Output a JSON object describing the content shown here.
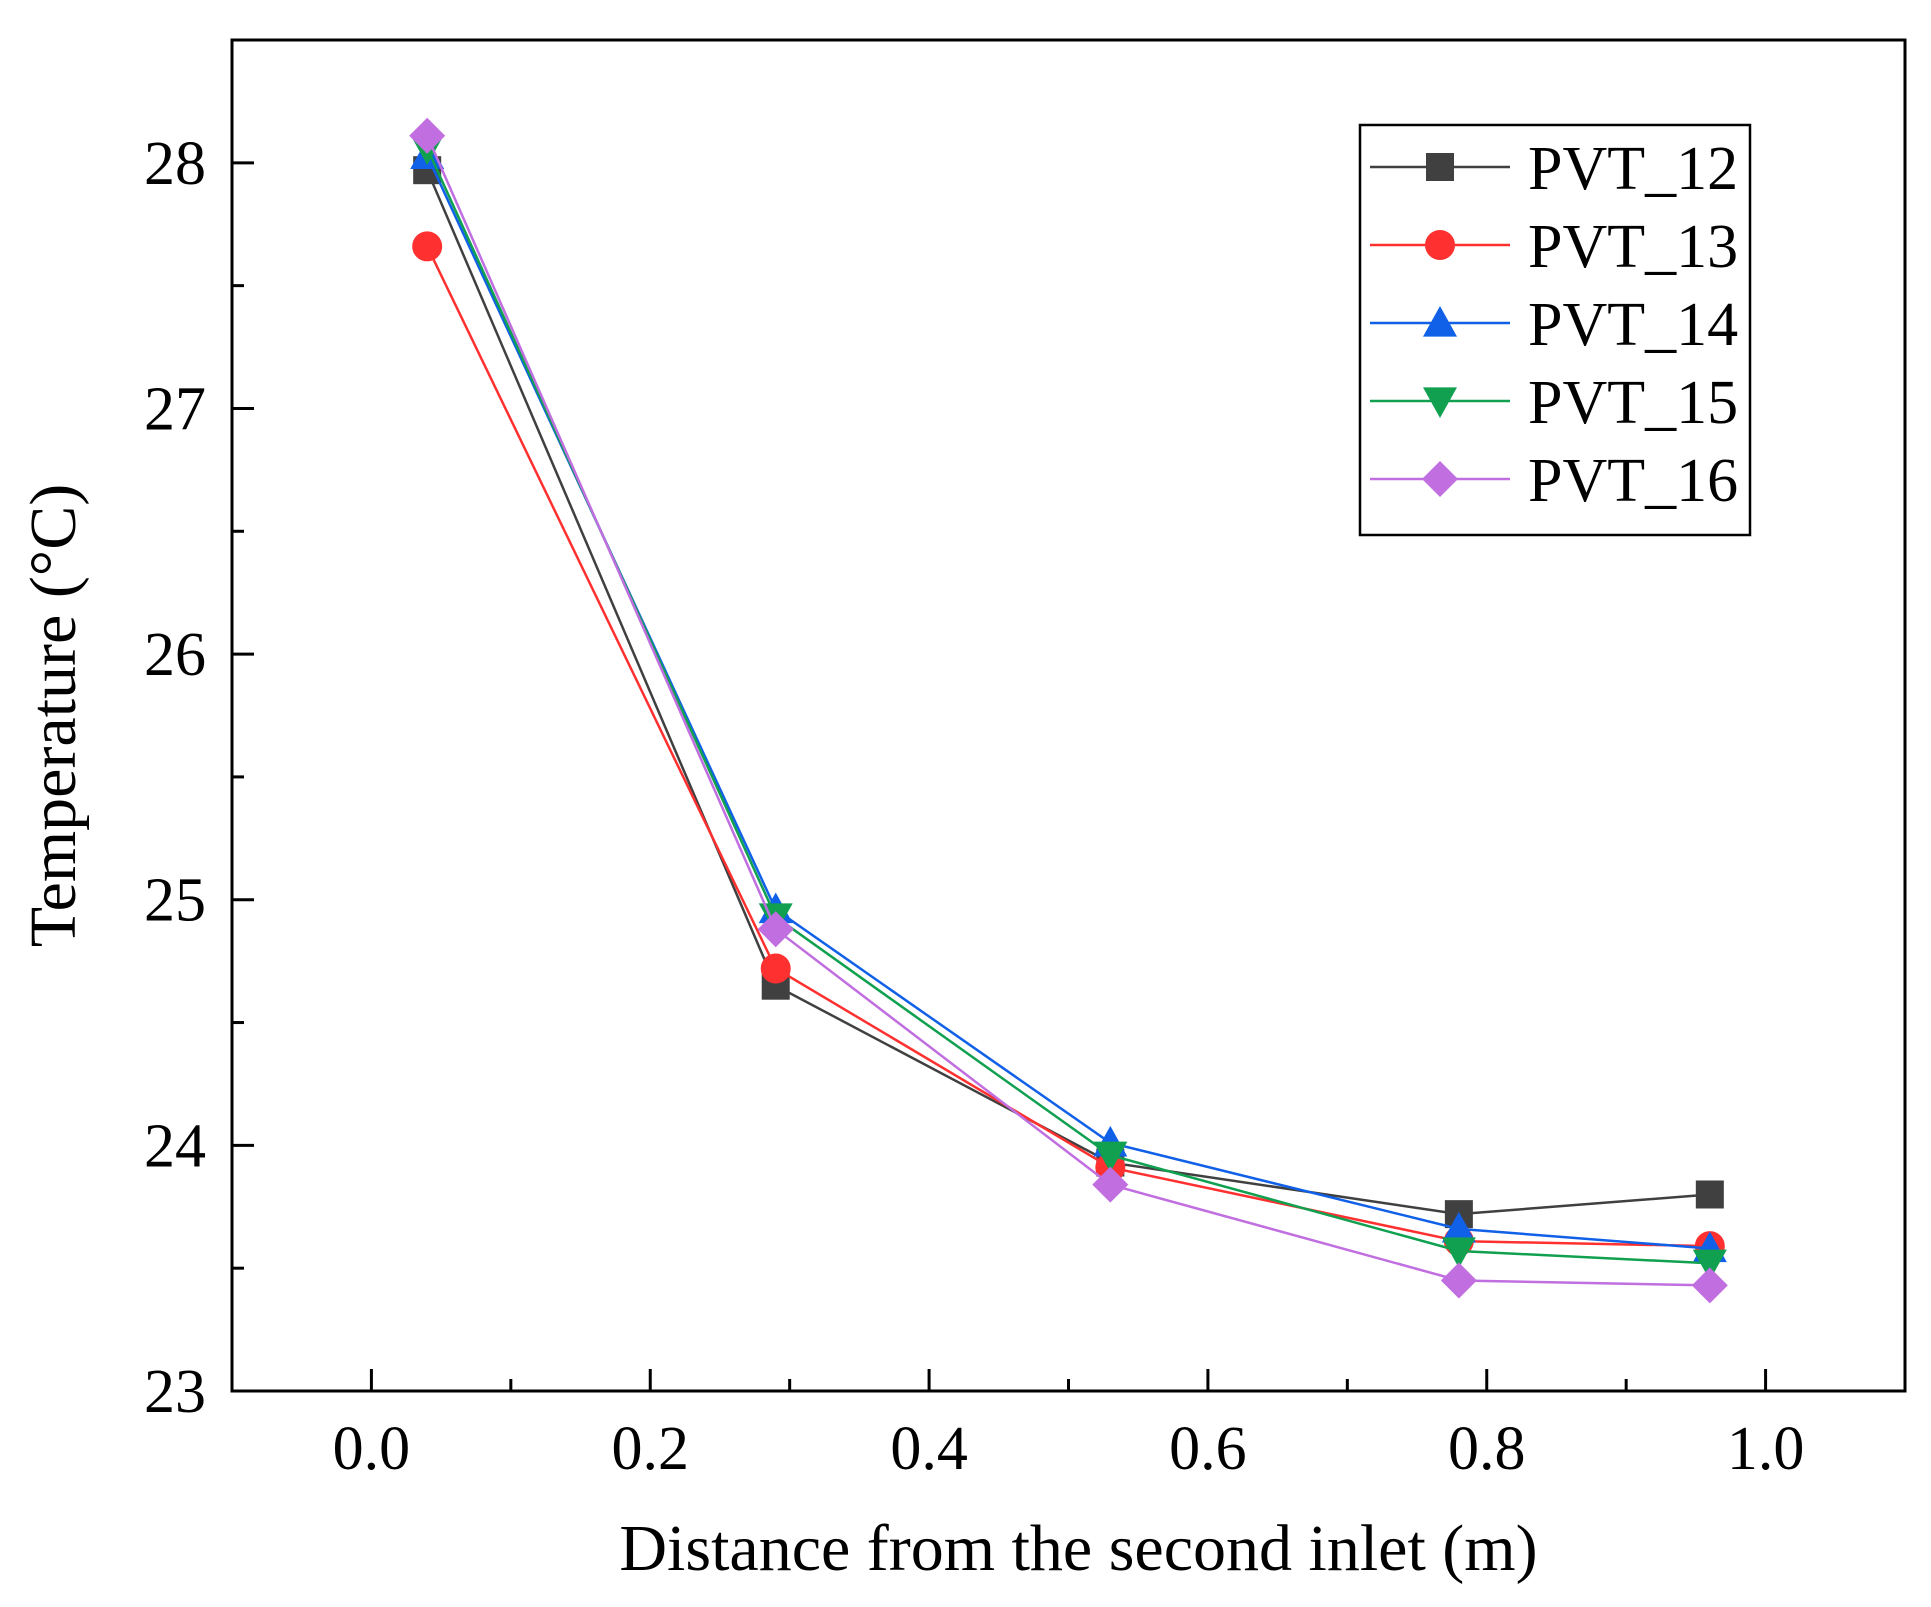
{
  "chart_data": {
    "type": "line",
    "title": "",
    "xlabel": "Distance from the second inlet (m)",
    "ylabel": "Temperature (°C)",
    "xlim": [
      -0.1,
      1.1
    ],
    "ylim": [
      23,
      28.5
    ],
    "x_ticks": [
      0.0,
      0.2,
      0.4,
      0.6,
      0.8,
      1.0
    ],
    "x_tick_labels": [
      "0.0",
      "0.2",
      "0.4",
      "0.6",
      "0.8",
      "1.0"
    ],
    "y_ticks": [
      23,
      24,
      25,
      26,
      27,
      28
    ],
    "y_tick_labels": [
      "23",
      "24",
      "25",
      "26",
      "27",
      "28"
    ],
    "grid": false,
    "legend_position": "top-right",
    "x": [
      0.04,
      0.29,
      0.53,
      0.78,
      0.96
    ],
    "series": [
      {
        "name": "PVT_12",
        "marker": "square",
        "color": "#404040",
        "values": [
          27.97,
          24.65,
          23.93,
          23.72,
          23.8
        ]
      },
      {
        "name": "PVT_13",
        "marker": "circle",
        "color": "#ff3030",
        "values": [
          27.66,
          24.72,
          23.91,
          23.61,
          23.59
        ]
      },
      {
        "name": "PVT_14",
        "marker": "triangle-up",
        "color": "#1060e8",
        "values": [
          28.03,
          24.96,
          24.01,
          23.66,
          23.58
        ]
      },
      {
        "name": "PVT_15",
        "marker": "triangle-down",
        "color": "#10a050",
        "values": [
          28.06,
          24.93,
          23.96,
          23.57,
          23.52
        ]
      },
      {
        "name": "PVT_16",
        "marker": "diamond",
        "color": "#c06ee0",
        "values": [
          28.11,
          24.88,
          23.84,
          23.45,
          23.43
        ]
      }
    ]
  }
}
